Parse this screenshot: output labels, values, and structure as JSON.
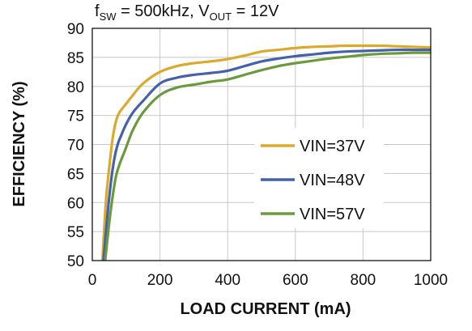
{
  "chart_data": {
    "type": "line",
    "title": {
      "f": "f",
      "f_sub": "SW",
      "f_value": " = 500kHz, V",
      "v_sub": "OUT",
      "v_value": " = 12V"
    },
    "xlabel": "LOAD CURRENT (mA)",
    "ylabel": "EFFICIENCY (%)",
    "xlim": [
      0,
      1000
    ],
    "ylim": [
      50,
      90
    ],
    "xticks": [
      0,
      200,
      400,
      600,
      800,
      1000
    ],
    "yticks": [
      50,
      55,
      60,
      65,
      70,
      75,
      80,
      85,
      90
    ],
    "grid": true,
    "legend_position": "right-middle",
    "series": [
      {
        "name": "VIN=37V",
        "color": "#DAAA2E",
        "x": [
          30,
          40,
          50,
          60,
          70,
          80,
          100,
          120,
          150,
          200,
          250,
          300,
          350,
          400,
          450,
          500,
          550,
          600,
          650,
          700,
          750,
          800,
          850,
          900,
          950,
          1000
        ],
        "y": [
          50,
          60,
          66,
          71,
          74,
          75.5,
          77,
          78.5,
          80.5,
          82.5,
          83.5,
          84,
          84.3,
          84.7,
          85.3,
          86,
          86.3,
          86.6,
          86.8,
          86.9,
          87,
          87,
          87,
          86.9,
          86.8,
          86.7
        ]
      },
      {
        "name": "VIN=48V",
        "color": "#4562A8",
        "x": [
          33,
          45,
          55,
          65,
          75,
          85,
          100,
          120,
          150,
          200,
          250,
          300,
          350,
          400,
          450,
          500,
          550,
          600,
          650,
          700,
          750,
          800,
          850,
          900,
          950,
          1000
        ],
        "y": [
          50,
          58,
          63.5,
          67.5,
          70,
          71.5,
          73.5,
          75.5,
          77.5,
          80.5,
          81.5,
          82,
          82.3,
          82.7,
          83.5,
          84.3,
          84.8,
          85.2,
          85.5,
          85.8,
          86,
          86.1,
          86.2,
          86.3,
          86.3,
          86.3
        ]
      },
      {
        "name": "VIN=57V",
        "color": "#6B9A3E",
        "x": [
          38,
          50,
          60,
          70,
          80,
          90,
          100,
          120,
          150,
          200,
          250,
          300,
          350,
          400,
          450,
          500,
          550,
          600,
          650,
          700,
          750,
          800,
          850,
          900,
          950,
          1000
        ],
        "y": [
          50,
          56.5,
          61,
          64.5,
          66.5,
          68,
          69.5,
          72.5,
          75.5,
          78.5,
          79.8,
          80.3,
          80.8,
          81.2,
          82,
          82.8,
          83.5,
          84,
          84.4,
          84.8,
          85.1,
          85.4,
          85.6,
          85.7,
          85.8,
          85.8
        ]
      }
    ]
  }
}
